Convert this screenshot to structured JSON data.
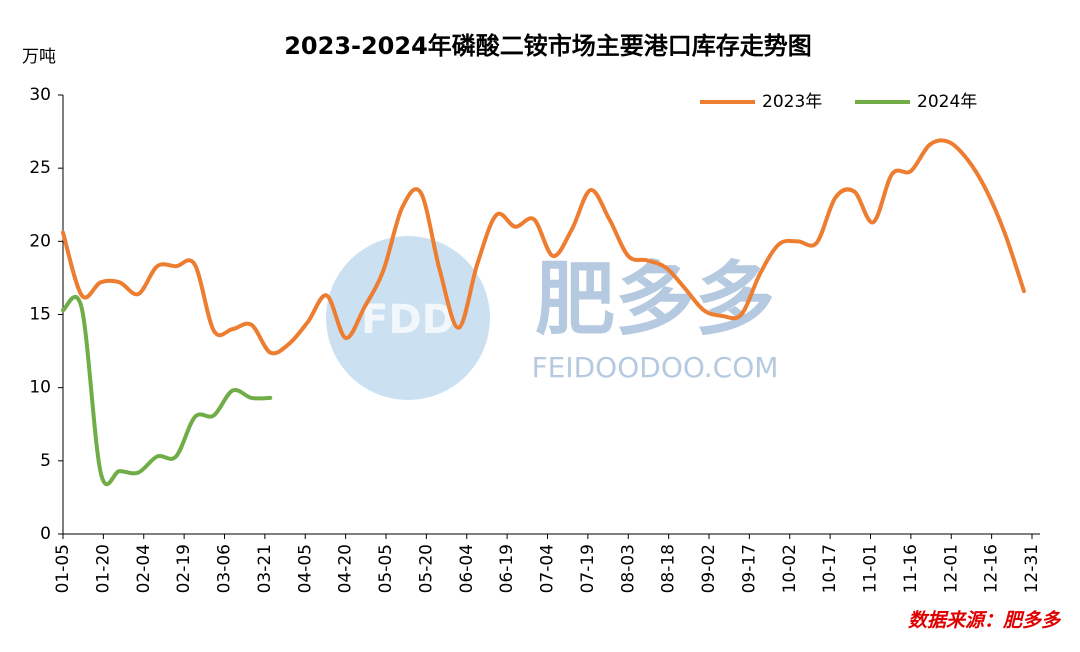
{
  "chart_data": {
    "type": "line",
    "title": "2023-2024年磷酸二铵市场主要港口库存走势图",
    "y_label": "万吨",
    "source": "数据来源：肥多多",
    "watermark": {
      "logo": "FDD",
      "name": "肥多多",
      "url": "FEIDOODOO.COM"
    },
    "xlim": [
      5,
      365
    ],
    "xticks": [
      {
        "value": 5,
        "label": "01-05"
      },
      {
        "value": 20,
        "label": "01-20"
      },
      {
        "value": 35,
        "label": "02-04"
      },
      {
        "value": 50,
        "label": "02-19"
      },
      {
        "value": 65,
        "label": "03-06"
      },
      {
        "value": 80,
        "label": "03-21"
      },
      {
        "value": 95,
        "label": "04-05"
      },
      {
        "value": 110,
        "label": "04-20"
      },
      {
        "value": 125,
        "label": "05-05"
      },
      {
        "value": 140,
        "label": "05-20"
      },
      {
        "value": 155,
        "label": "06-04"
      },
      {
        "value": 170,
        "label": "06-19"
      },
      {
        "value": 185,
        "label": "07-04"
      },
      {
        "value": 200,
        "label": "07-19"
      },
      {
        "value": 215,
        "label": "08-03"
      },
      {
        "value": 230,
        "label": "08-18"
      },
      {
        "value": 245,
        "label": "09-02"
      },
      {
        "value": 260,
        "label": "09-17"
      },
      {
        "value": 275,
        "label": "10-02"
      },
      {
        "value": 290,
        "label": "10-17"
      },
      {
        "value": 305,
        "label": "11-01"
      },
      {
        "value": 320,
        "label": "11-16"
      },
      {
        "value": 335,
        "label": "12-01"
      },
      {
        "value": 350,
        "label": "12-16"
      },
      {
        "value": 365,
        "label": "12-31"
      }
    ],
    "ylim": [
      0,
      30
    ],
    "yticks": [
      0,
      5,
      10,
      15,
      20,
      25,
      30
    ],
    "legend": "top-right",
    "series": [
      {
        "name": "2023年",
        "color": "#ed7d31",
        "x": [
          5,
          12,
          19,
          26,
          33,
          40,
          47,
          54,
          61,
          68,
          75,
          82,
          89,
          96,
          103,
          110,
          117,
          124,
          131,
          138,
          145,
          152,
          159,
          166,
          173,
          180,
          187,
          194,
          201,
          208,
          215,
          222,
          229,
          236,
          243,
          250,
          257,
          264,
          271,
          278,
          285,
          292,
          299,
          306,
          313,
          320,
          327,
          334,
          341,
          348,
          355,
          362
        ],
        "values": [
          20.6,
          16.3,
          17.2,
          17.2,
          16.4,
          18.3,
          18.3,
          18.4,
          13.9,
          14.0,
          14.3,
          12.4,
          13.0,
          14.5,
          16.3,
          13.4,
          15.5,
          18.0,
          22.3,
          23.3,
          18.0,
          14.1,
          18.5,
          21.8,
          21.0,
          21.5,
          19.0,
          20.8,
          23.5,
          21.5,
          19.0,
          18.7,
          18.2,
          16.8,
          15.3,
          14.9,
          15.0,
          17.8,
          19.8,
          20.0,
          19.9,
          23.0,
          23.4,
          21.3,
          24.6,
          24.8,
          26.6,
          26.8,
          25.6,
          23.5,
          20.5,
          16.6
        ]
      },
      {
        "name": "2024年",
        "color": "#70ad47",
        "x": [
          5,
          12,
          19,
          26,
          33,
          40,
          47,
          54,
          61,
          68,
          75,
          82
        ],
        "values": [
          15.3,
          15.4,
          4.2,
          4.3,
          4.2,
          5.3,
          5.3,
          8.0,
          8.1,
          9.8,
          9.3,
          9.3
        ]
      }
    ]
  }
}
